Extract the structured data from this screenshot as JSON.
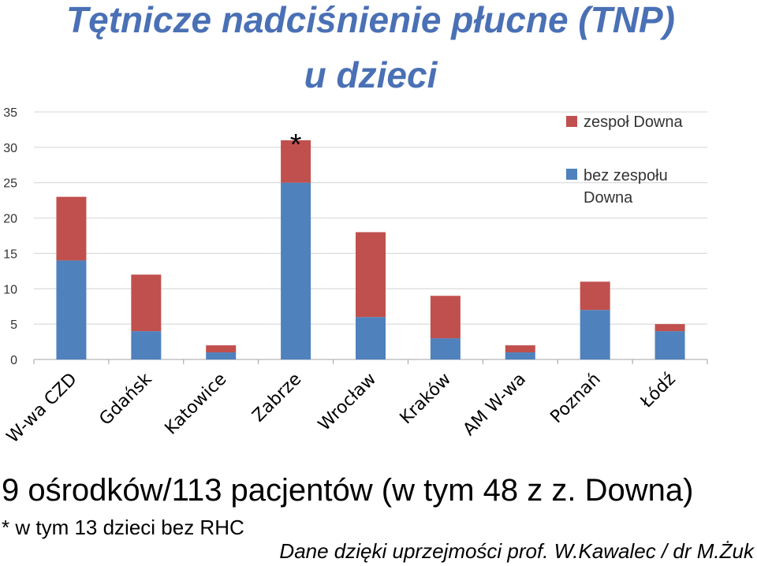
{
  "header": {
    "title_line1": "Tętnicze nadciśnienie płucne (TNP)",
    "title_line2": "u dzieci"
  },
  "chart_data": {
    "type": "bar",
    "stacked": true,
    "categories": [
      "W-wa CZD",
      "Gdańsk",
      "Katowice",
      "Zabrze",
      "Wrocław",
      "Kraków",
      "AM W-wa",
      "Poznań",
      "Łódź"
    ],
    "series": [
      {
        "name": "bez zespołu Downa",
        "color": "#4f81bd",
        "values": [
          14,
          4,
          1,
          25,
          6,
          3,
          1,
          7,
          4
        ]
      },
      {
        "name": "zespoł Downa",
        "color": "#c0504d",
        "values": [
          9,
          8,
          1,
          6,
          12,
          6,
          1,
          4,
          1
        ]
      }
    ],
    "ylim": [
      0,
      35
    ],
    "yticks": [
      "0",
      "5",
      "10",
      "15",
      "20",
      "25",
      "30",
      "35"
    ],
    "grid": true,
    "legend_position": "top-right",
    "legend": [
      {
        "label": "zespoł Downa",
        "color": "#c0504d"
      },
      {
        "label": "bez zespołu Downa",
        "color": "#4f81bd"
      }
    ],
    "annotations": [
      {
        "category": "Zabrze",
        "text": "*"
      }
    ]
  },
  "footer": {
    "summary": "9 ośrodków/113 pacjentów (w tym 48 z z. Downa)",
    "footnote": "* w tym 13 dzieci bez RHC",
    "credit": "Dane dzięki uprzejmości prof. W.Kawalec / dr M.Żuk"
  }
}
